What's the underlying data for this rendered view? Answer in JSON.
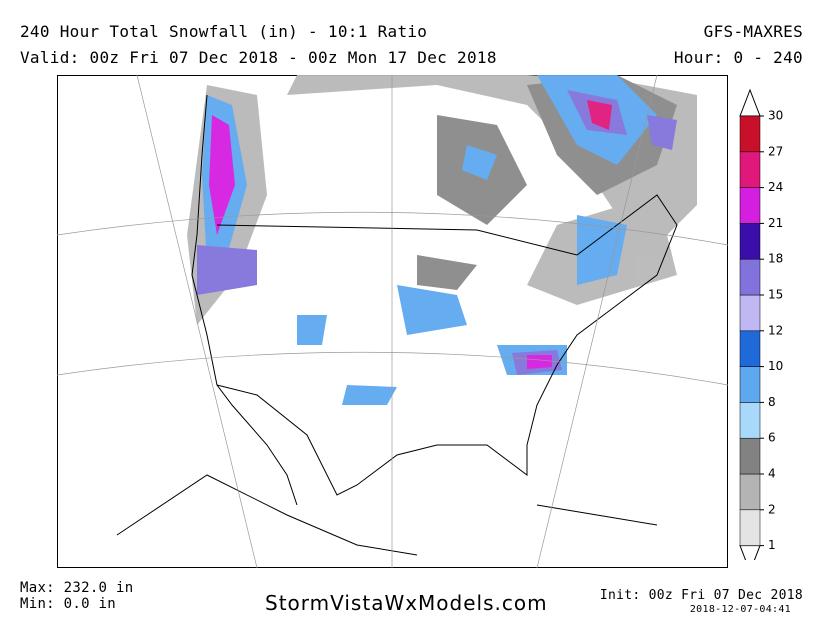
{
  "header": {
    "title": "240 Hour Total Snowfall (in) - 10:1 Ratio",
    "model": "GFS-MAXRES",
    "valid": "Valid: 00z Fri 07 Dec 2018 - 00z Mon 17 Dec 2018",
    "hour": "Hour: 0 - 240"
  },
  "legend": {
    "levels": [
      1,
      2,
      4,
      6,
      8,
      10,
      12,
      15,
      18,
      21,
      24,
      27,
      30
    ],
    "colors": [
      "#e4e4e4",
      "#b4b4b4",
      "#828282",
      "#a8d8fa",
      "#5ea8f0",
      "#1f6ad8",
      "#c0b8f2",
      "#8272dc",
      "#3a0ea8",
      "#d41ee0",
      "#e0187c",
      "#c8102a",
      "#e81818"
    ]
  },
  "footer": {
    "max": "Max: 232.0 in",
    "min": "Min: 0.0 in",
    "site": "StormVistaWxModels.com",
    "init": "Init: 00z Fri 07 Dec 2018",
    "stamp": "2018-12-07-04:41"
  }
}
